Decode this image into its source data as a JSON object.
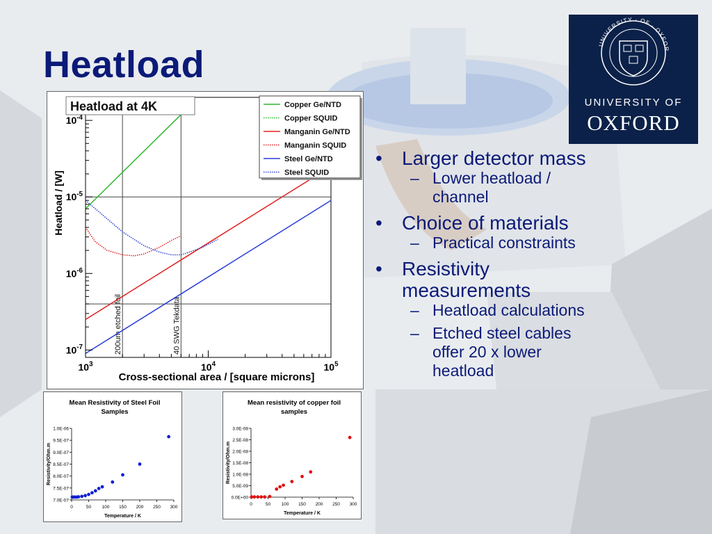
{
  "slide": {
    "title": "Heatload",
    "logo": {
      "line1": "UNIVERSITY OF",
      "line2": "OXFORD",
      "seal_text": "UNIVERSITY · OF · OXFORD"
    },
    "bullets": [
      {
        "text": "Larger detector mass",
        "subs": [
          "Lower heatload / channel"
        ]
      },
      {
        "text": " Choice of materials",
        "subs": [
          "Practical constraints"
        ]
      },
      {
        "text": "Resistivity measurements",
        "subs": [
          "Heatload calculations",
          "Etched steel cables offer 20 x lower heatload"
        ]
      }
    ],
    "bullet_marker": "•",
    "sub_marker": "–"
  },
  "chart_data": [
    {
      "type": "line",
      "title": "Heatload at 4K",
      "xlabel": "Cross-sectional area / [square microns]",
      "ylabel": "Heatload / [W]",
      "xscale": "log",
      "yscale": "log",
      "xlim": [
        1000,
        100000
      ],
      "ylim": [
        8e-08,
        0.0002
      ],
      "xticks": [
        "10^3",
        "10^4",
        "10^5"
      ],
      "yticks": [
        "10^-7",
        "10^-6",
        "10^-5",
        "10^-4"
      ],
      "legend_position": "top-right",
      "reference_lines": [
        {
          "type": "vertical",
          "x": 2000,
          "label": "200um etched foil"
        },
        {
          "type": "vertical",
          "x": 6000,
          "label": "40 SWG Tekdata"
        },
        {
          "type": "horizontal",
          "y": 1e-05
        },
        {
          "type": "horizontal",
          "y": 4e-07
        }
      ],
      "series": [
        {
          "name": "Copper Ge/NTD",
          "style": "solid",
          "color": "#2db82d",
          "points": [
            [
              1000,
              7e-06
            ],
            [
              6000,
              0.000119
            ]
          ]
        },
        {
          "name": "Copper SQUID",
          "style": "dotted",
          "color": "#2db82d",
          "points": []
        },
        {
          "name": "Manganin Ge/NTD",
          "style": "solid",
          "color": "#e02020",
          "points": [
            [
              1000,
              2.5e-07
            ],
            [
              100000,
              2.5e-05
            ]
          ]
        },
        {
          "name": "Manganin SQUID",
          "style": "dotted",
          "color": "#e02020",
          "points": [
            [
              1000,
              4e-06
            ],
            [
              1200,
              2.6e-06
            ],
            [
              1500,
              2e-06
            ],
            [
              2000,
              1.75e-06
            ],
            [
              2500,
              1.7e-06
            ],
            [
              3000,
              1.8e-06
            ],
            [
              4000,
              2.2e-06
            ],
            [
              5000,
              2.7e-06
            ],
            [
              6000,
              3.1e-06
            ]
          ]
        },
        {
          "name": "Steel Ge/NTD",
          "style": "solid",
          "color": "#2a3fd6",
          "points": [
            [
              1000,
              9e-08
            ],
            [
              100000,
              9e-06
            ]
          ]
        },
        {
          "name": "Steel SQUID",
          "style": "dotted",
          "color": "#2a3fd6",
          "points": [
            [
              1000,
              9e-06
            ],
            [
              2000,
              3.5e-06
            ],
            [
              3000,
              2.3e-06
            ],
            [
              4000,
              1.9e-06
            ],
            [
              5000,
              1.75e-06
            ],
            [
              6000,
              1.75e-06
            ],
            [
              7000,
              1.9e-06
            ],
            [
              9000,
              2.2e-06
            ],
            [
              12000,
              2.8e-06
            ]
          ]
        }
      ]
    },
    {
      "type": "scatter",
      "title": "Mean Resistivity of Steel Foil Samples",
      "xlabel": "Temperature / K",
      "ylabel": "Resistivity/Ohm.m",
      "xlim": [
        0,
        300
      ],
      "ylim": [
        7e-07,
        1e-06
      ],
      "xticks": [
        "0",
        "50",
        "100",
        "150",
        "200",
        "250",
        "300"
      ],
      "yticks": [
        "7.0E-07",
        "7.5E-07",
        "8.0E-07",
        "8.5E-07",
        "9.0E-07",
        "9.5E-07",
        "1.0E-06"
      ],
      "color": "#1020d0",
      "x": [
        2,
        5,
        10,
        15,
        20,
        30,
        40,
        50,
        60,
        70,
        80,
        90,
        120,
        150,
        200,
        285
      ],
      "y": [
        7.12e-07,
        7.12e-07,
        7.12e-07,
        7.12e-07,
        7.13e-07,
        7.15e-07,
        7.18e-07,
        7.23e-07,
        7.3e-07,
        7.38e-07,
        7.48e-07,
        7.55e-07,
        7.75e-07,
        8.05e-07,
        8.5e-07,
        9.65e-07
      ]
    },
    {
      "type": "scatter",
      "title": "Mean resistivity of copper foil samples",
      "xlabel": "Temperature / K",
      "ylabel": "Resistivity/Ohm.m",
      "xlim": [
        0,
        300
      ],
      "ylim": [
        0,
        3e-08
      ],
      "xticks": [
        "0",
        "50",
        "100",
        "150",
        "200",
        "250",
        "300"
      ],
      "yticks": [
        "0.0E+00",
        "5.0E-09",
        "1.0E-08",
        "1.5E-08",
        "2.0E-08",
        "2.5E-08",
        "3.0E-08"
      ],
      "color": "#e01010",
      "x": [
        2,
        10,
        20,
        30,
        40,
        55,
        75,
        85,
        95,
        120,
        150,
        175,
        290
      ],
      "y": [
        1e-10,
        1e-10,
        1e-10,
        1e-10,
        1e-10,
        3e-10,
        3.5e-09,
        4.5e-09,
        5.2e-09,
        6.8e-09,
        9e-09,
        1.1e-08,
        2.6e-08
      ]
    }
  ]
}
